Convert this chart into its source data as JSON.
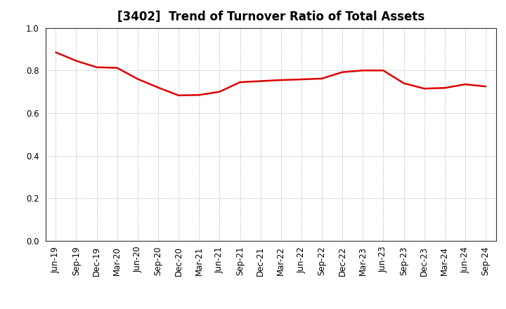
{
  "title": "[3402]  Trend of Turnover Ratio of Total Assets",
  "x_labels": [
    "Jun-19",
    "Sep-19",
    "Dec-19",
    "Mar-20",
    "Jun-20",
    "Sep-20",
    "Dec-20",
    "Mar-21",
    "Jun-21",
    "Sep-21",
    "Dec-21",
    "Mar-22",
    "Jun-22",
    "Sep-22",
    "Dec-22",
    "Mar-23",
    "Jun-23",
    "Sep-23",
    "Dec-23",
    "Mar-24",
    "Jun-24",
    "Sep-24"
  ],
  "values": [
    0.885,
    0.845,
    0.815,
    0.812,
    0.76,
    0.72,
    0.683,
    0.685,
    0.7,
    0.745,
    0.75,
    0.755,
    0.758,
    0.762,
    0.792,
    0.8,
    0.8,
    0.74,
    0.715,
    0.718,
    0.735,
    0.725
  ],
  "line_color": "#dd0000",
  "line_width": 1.8,
  "ylim": [
    0.0,
    1.0
  ],
  "yticks": [
    0.0,
    0.2,
    0.4,
    0.6,
    0.8,
    1.0
  ],
  "grid_color": "#aaaaaa",
  "bg_color": "#ffffff",
  "title_fontsize": 12,
  "tick_fontsize": 8.5,
  "axes_linecolor": "#333333"
}
